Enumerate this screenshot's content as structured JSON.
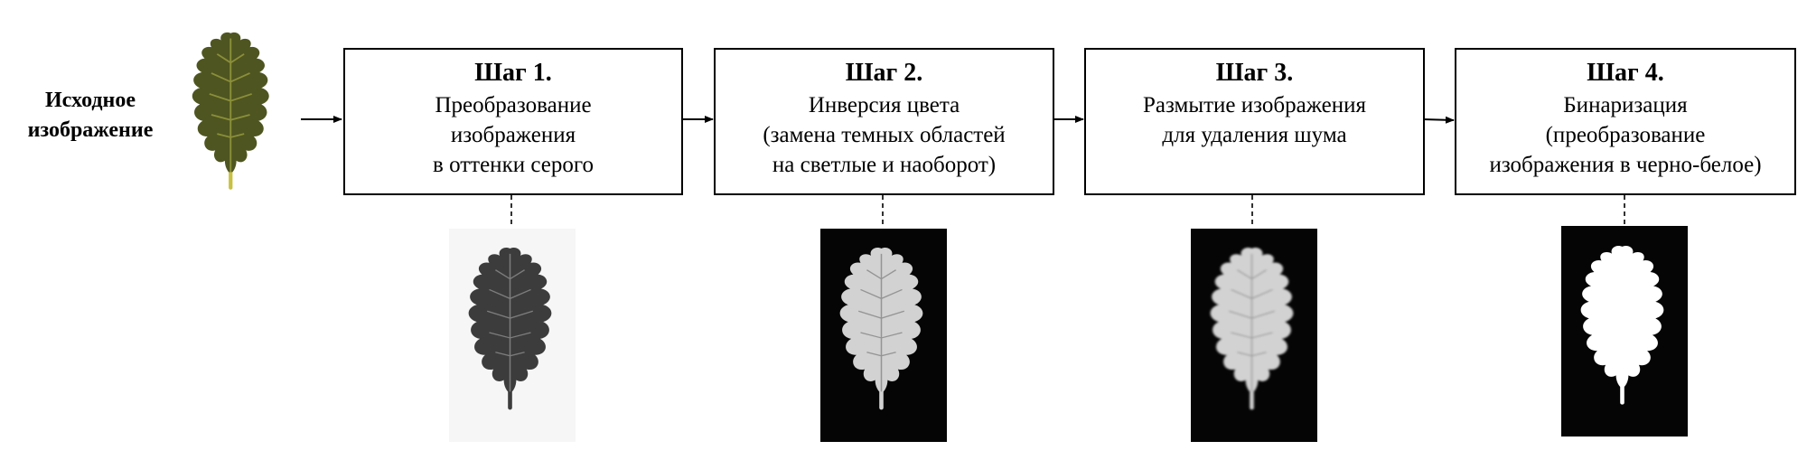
{
  "source": {
    "label_lines": [
      "Исходное",
      "изображение"
    ]
  },
  "steps": [
    {
      "title": "Шаг 1.",
      "lines": [
        "Преобразование",
        "изображения",
        "в оттенки серого"
      ]
    },
    {
      "title": "Шаг 2.",
      "lines": [
        "Инверсия цвета",
        "(замена темных областей",
        "на светлые и наоборот)"
      ]
    },
    {
      "title": "Шаг 3.",
      "lines": [
        "Размытие изображения",
        "для удаления шума"
      ]
    },
    {
      "title": "Шаг 4.",
      "lines": [
        "Бинаризация",
        "(преобразование",
        "изображения в черно-белое)"
      ]
    }
  ],
  "colors": {
    "leaf_original": "#4f5520",
    "leaf_vein": "#8a8f3a",
    "leaf_stem": "#c8c040",
    "leaf_gray": "#3c3c3c",
    "leaf_inverted": "#d2d2d2",
    "leaf_binary": "#ffffff",
    "bg_dark": "#050505",
    "bg_light": "#f6f6f6"
  }
}
